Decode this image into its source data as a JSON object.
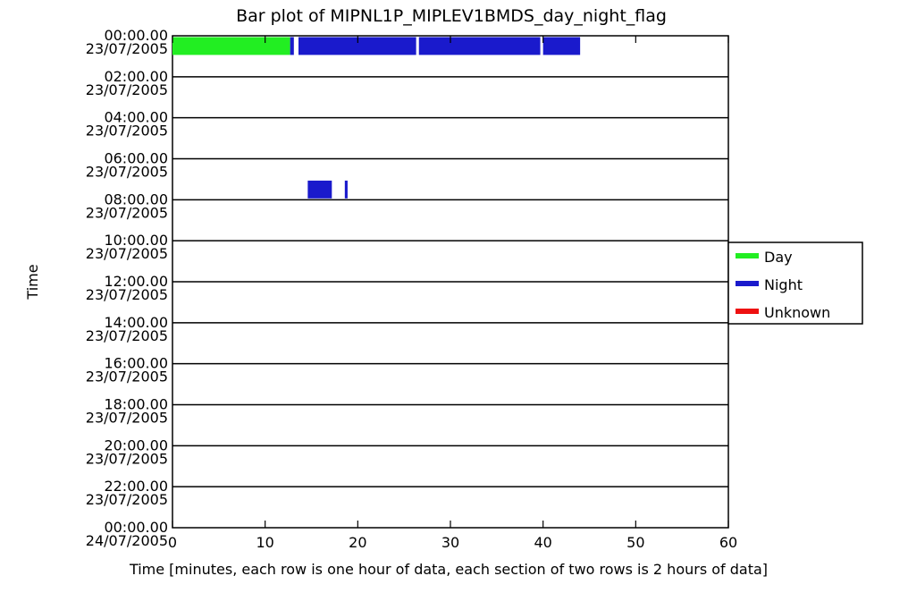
{
  "chart_data": {
    "type": "bar",
    "title": "Bar plot of  MIPNL1P_MIPLEV1BMDS_day_night_flag",
    "xlabel": "Time [minutes, each row is one hour of data, each section of two rows is 2 hours of data]",
    "ylabel": "Time",
    "xlim": [
      0,
      60
    ],
    "x_ticks": [
      0,
      10,
      20,
      30,
      40,
      50,
      60
    ],
    "y_ticks": [
      {
        "time": "00:00.00",
        "date": "23/07/2005"
      },
      {
        "time": "02:00.00",
        "date": "23/07/2005"
      },
      {
        "time": "04:00.00",
        "date": "23/07/2005"
      },
      {
        "time": "06:00.00",
        "date": "23/07/2005"
      },
      {
        "time": "08:00.00",
        "date": "23/07/2005"
      },
      {
        "time": "10:00.00",
        "date": "23/07/2005"
      },
      {
        "time": "12:00.00",
        "date": "23/07/2005"
      },
      {
        "time": "14:00.00",
        "date": "23/07/2005"
      },
      {
        "time": "16:00.00",
        "date": "23/07/2005"
      },
      {
        "time": "18:00.00",
        "date": "23/07/2005"
      },
      {
        "time": "20:00.00",
        "date": "23/07/2005"
      },
      {
        "time": "22:00.00",
        "date": "23/07/2005"
      },
      {
        "time": "00:00.00",
        "date": "24/07/2005"
      }
    ],
    "legend": {
      "position": "right",
      "entries": [
        {
          "label": "Day",
          "color": "#22ee22"
        },
        {
          "label": "Night",
          "color": "#1a1acc"
        },
        {
          "label": "Unknown",
          "color": "#ee1111"
        }
      ]
    },
    "segments": [
      {
        "hour": 0,
        "start": 0.0,
        "end": 12.7,
        "flag": "Day"
      },
      {
        "hour": 0,
        "start": 12.7,
        "end": 13.1,
        "flag": "Night"
      },
      {
        "hour": 0,
        "start": 13.6,
        "end": 26.3,
        "flag": "Night"
      },
      {
        "hour": 0,
        "start": 26.6,
        "end": 39.7,
        "flag": "Night"
      },
      {
        "hour": 0,
        "start": 40.0,
        "end": 44.0,
        "flag": "Night"
      },
      {
        "hour": 7,
        "start": 14.6,
        "end": 17.2,
        "flag": "Night"
      },
      {
        "hour": 7,
        "start": 18.6,
        "end": 18.9,
        "flag": "Night"
      }
    ]
  }
}
